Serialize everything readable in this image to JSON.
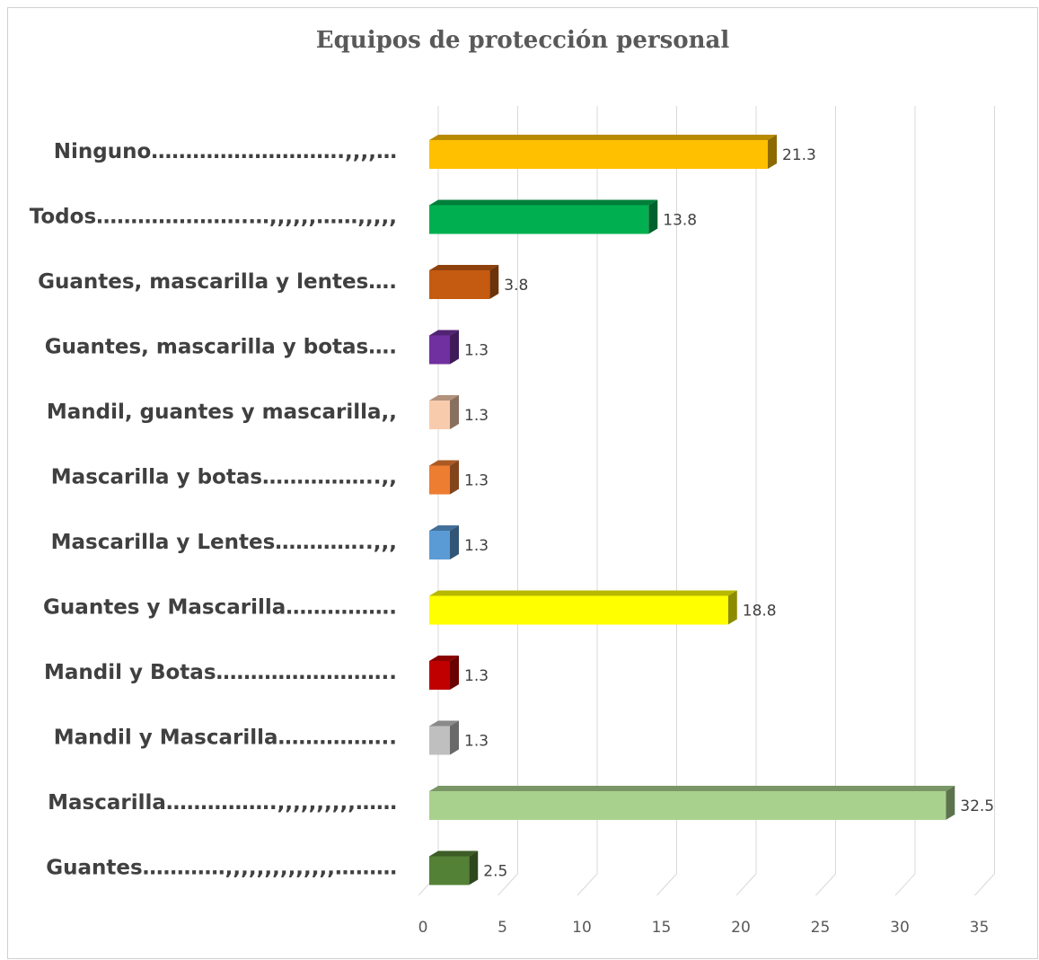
{
  "chart_data": {
    "type": "bar",
    "orientation": "horizontal",
    "title": "Equipos de protección personal",
    "categories": [
      "Ninguno……………………….,,,,…",
      "Todos………………….…,,,,,,……,,,,,",
      "Guantes, mascarilla y lentes….",
      "Guantes, mascarilla y botas….",
      "Mandil, guantes y mascarilla,,",
      "Mascarilla y botas……………..,,",
      "Mascarilla y Lentes…………..,,,",
      "Guantes y Mascarilla…………….",
      "Mandil y Botas……………………..",
      "Mandil y Mascarilla……………..",
      "Mascarilla…………….,,,,,,,,,,……",
      "Guantes…………,,,,,,,,,,,,,,………"
    ],
    "values": [
      21.3,
      13.8,
      3.8,
      1.3,
      1.3,
      1.3,
      1.3,
      18.8,
      1.3,
      1.3,
      32.5,
      2.5
    ],
    "value_labels": [
      "21.3",
      "13.8",
      "3.8",
      "1.3",
      "1.3",
      "1.3",
      "1.3",
      "18.8",
      "1.3",
      "1.3",
      "32.5",
      "2.5"
    ],
    "colors": [
      "#FFC000",
      "#00B050",
      "#C55A11",
      "#7030A0",
      "#F8CBAD",
      "#ED7D31",
      "#5B9BD5",
      "#FFFF00",
      "#C00000",
      "#BFBFBF",
      "#A9D18E",
      "#538135"
    ],
    "x_ticks": [
      "0",
      "5",
      "10",
      "15",
      "20",
      "25",
      "30",
      "35"
    ],
    "xlim": [
      0,
      35
    ],
    "grid": true,
    "style": "3d"
  }
}
